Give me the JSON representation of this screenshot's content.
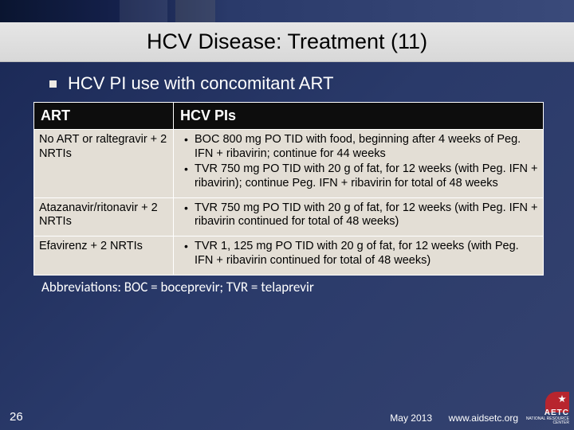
{
  "slide": {
    "title": "HCV Disease: Treatment (11)",
    "subheading": "HCV PI use with concomitant ART",
    "abbrev": "Abbreviations: BOC = boceprevir; TVR = telaprevir",
    "number": "26",
    "date": "May 2013",
    "url": "www.aidsetc.org"
  },
  "table": {
    "headers": {
      "col1": "ART",
      "col2": "HCV PIs"
    },
    "rows": [
      {
        "art": "No ART or raltegravir + 2 NRTIs",
        "items": [
          "BOC 800 mg PO TID with food, beginning after 4 weeks of Peg. IFN + ribavirin; continue for 44 weeks",
          "TVR 750 mg PO TID with 20 g of fat, for 12 weeks (with Peg. IFN + ribavirin); continue Peg. IFN + ribavirin for total of 48 weeks"
        ]
      },
      {
        "art": "Atazanavir/ritonavir + 2 NRTIs",
        "items": [
          "TVR 750 mg PO TID with 20 g of fat, for 12 weeks (with Peg. IFN + ribavirin continued for total of 48 weeks)"
        ]
      },
      {
        "art": "Efavirenz + 2 NRTIs",
        "items": [
          "TVR 1, 125 mg PO TID with 20 g of fat, for 12 weeks (with Peg. IFN + ribavirin continued for total of 48 weeks)"
        ]
      }
    ]
  },
  "colors": {
    "header_bg": "#0d0d0d",
    "cell_bg": "#e3ded5",
    "title_bg": "#dedede",
    "body_gradient_start": "#1a2855",
    "logo_red": "#b8252e"
  },
  "logo": {
    "brand": "AETC",
    "sub": "NATIONAL\nRESOURCE\nCENTER"
  }
}
